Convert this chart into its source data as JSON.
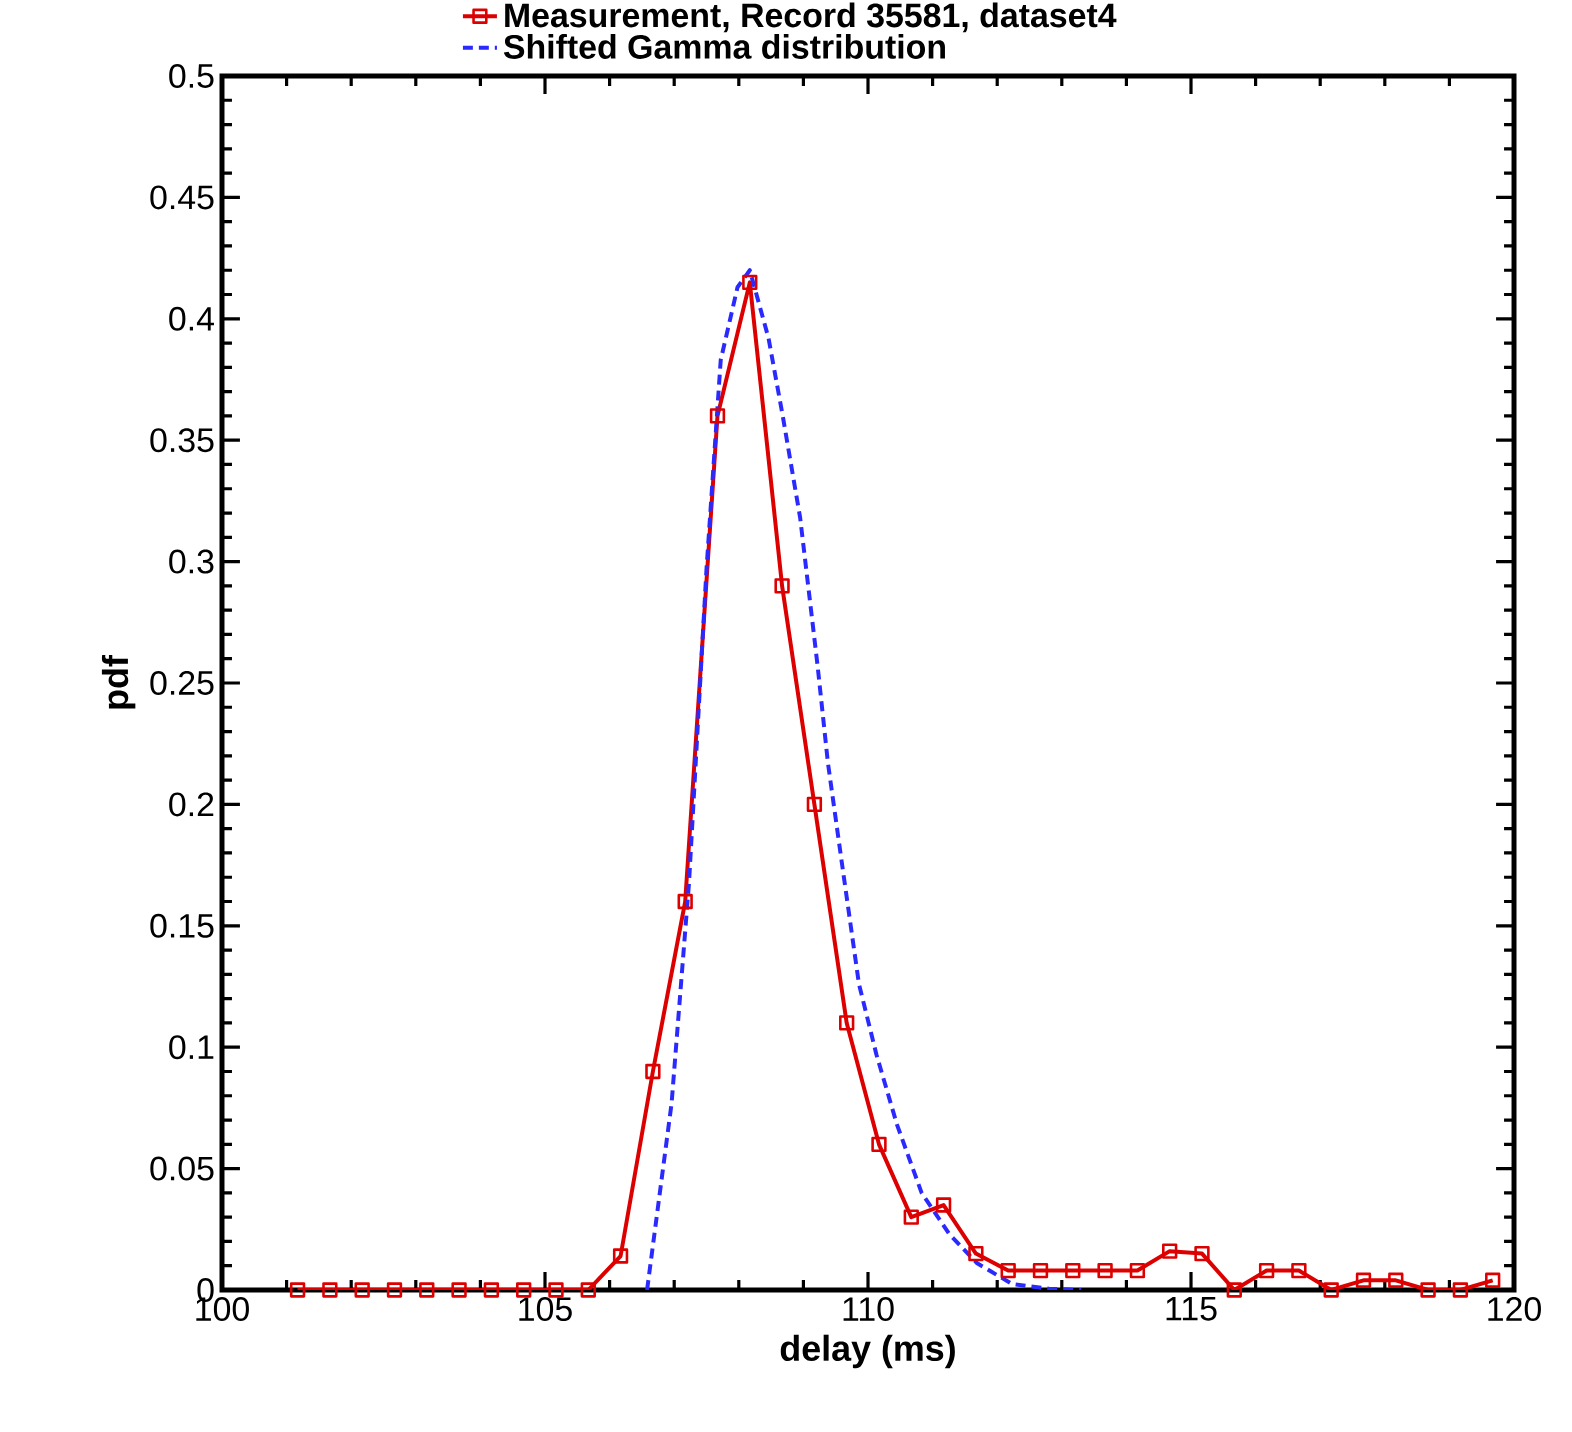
{
  "chart_data": {
    "type": "line",
    "xlabel": "delay (ms)",
    "ylabel": "pdf",
    "xlim": [
      100,
      120
    ],
    "ylim": [
      0,
      0.5
    ],
    "xticks": [
      100,
      105,
      110,
      115,
      120
    ],
    "yticks": [
      0,
      0.05,
      0.1,
      0.15,
      0.2,
      0.25,
      0.3,
      0.35,
      0.4,
      0.45,
      0.5
    ],
    "legend": "top",
    "grid": false,
    "series": [
      {
        "name": "Measurement, Record 35581, dataset4",
        "color": "#dd0000",
        "marker": "square",
        "line_style": "solid",
        "x": [
          101.17,
          101.67,
          102.17,
          102.67,
          103.17,
          103.67,
          104.17,
          104.67,
          105.17,
          105.67,
          106.17,
          106.67,
          107.17,
          107.67,
          108.17,
          108.67,
          109.17,
          109.67,
          110.17,
          110.67,
          111.17,
          111.67,
          112.17,
          112.67,
          113.17,
          113.67,
          114.17,
          114.67,
          115.17,
          115.67,
          116.17,
          116.67,
          117.17,
          117.67,
          118.17,
          118.67,
          119.17,
          119.67
        ],
        "values": [
          0,
          0,
          0,
          0,
          0,
          0,
          0,
          0,
          0,
          0,
          0.014,
          0.09,
          0.16,
          0.36,
          0.415,
          0.29,
          0.2,
          0.11,
          0.06,
          0.03,
          0.035,
          0.015,
          0.008,
          0.008,
          0.008,
          0.008,
          0.008,
          0.016,
          0.015,
          0,
          0.008,
          0.008,
          0,
          0.004,
          0.004,
          0,
          0,
          0.004
        ]
      },
      {
        "name": "Shifted Gamma distribution",
        "color": "#2a2aff",
        "marker": "none",
        "line_style": "dashed",
        "x": [
          106.58,
          106.96,
          107.23,
          107.5,
          107.72,
          107.98,
          108.17,
          108.46,
          108.68,
          108.95,
          109.22,
          109.38,
          109.6,
          109.86,
          110.13,
          110.45,
          110.83,
          111.26,
          111.69,
          112.23,
          112.8,
          113.3
        ],
        "values": [
          0,
          0.077,
          0.168,
          0.297,
          0.383,
          0.413,
          0.42,
          0.392,
          0.36,
          0.318,
          0.257,
          0.217,
          0.175,
          0.126,
          0.097,
          0.068,
          0.04,
          0.023,
          0.011,
          0.0025,
          0.0005,
          0
        ]
      }
    ]
  }
}
